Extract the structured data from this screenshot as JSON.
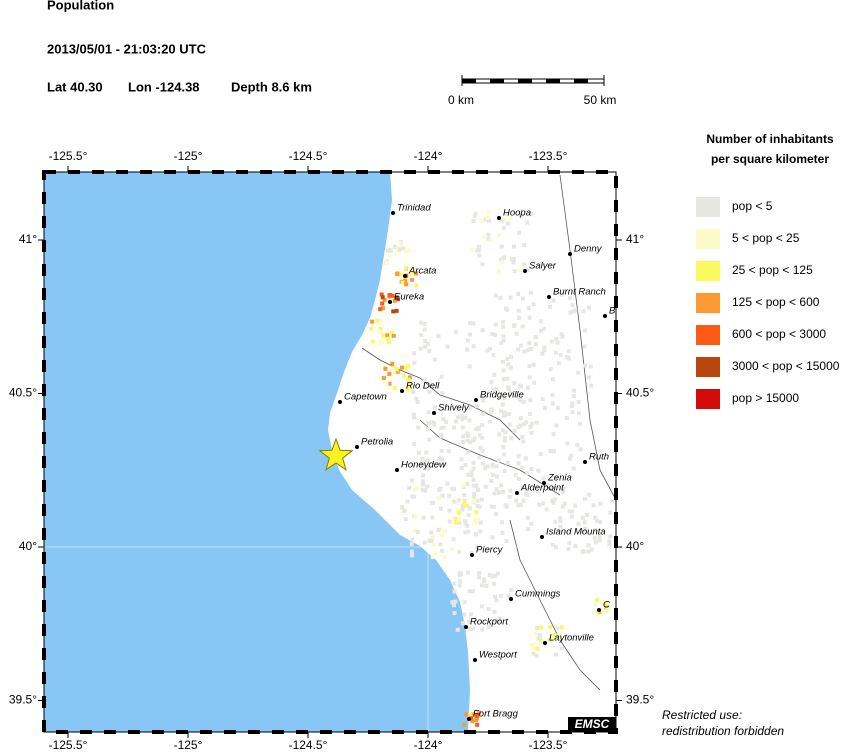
{
  "header": {
    "title": "Population",
    "datetime": "2013/05/01 - 21:03:20 UTC",
    "lat": "Lat 40.30",
    "lon": "Lon -124.38",
    "depth": "Depth  8.6 km"
  },
  "scale_bar": {
    "start": "0 km",
    "end": "50 km"
  },
  "map": {
    "lon_ticks": [
      {
        "value": -125.5,
        "label": "-125.5°"
      },
      {
        "value": -125,
        "label": "-125°"
      },
      {
        "value": -124.5,
        "label": "-124.5°"
      },
      {
        "value": -124,
        "label": "-124°"
      },
      {
        "value": -123.5,
        "label": "-123.5°"
      }
    ],
    "lat_ticks": [
      {
        "value": 41,
        "label": "41°"
      },
      {
        "value": 40.5,
        "label": "40.5°"
      },
      {
        "value": 40,
        "label": "40°"
      },
      {
        "value": 39.5,
        "label": "39.5°"
      }
    ],
    "cities": [
      "Trinidad",
      "Hoopa",
      "Denny",
      "Arcata",
      "Salyer",
      "Eureka",
      "Burnt Ranch",
      "B",
      "Rio Dell",
      "Capetown",
      "Bridgeville",
      "Shively",
      "Petrolia",
      "Ruth",
      "Honeydew",
      "Zenia",
      "Alderpoint",
      "Island Mounta",
      "Piercy",
      "Cummings",
      "C",
      "Rockport",
      "Laytonville",
      "Westport",
      "Fort Bragg"
    ],
    "badge": "EMSC"
  },
  "legend": {
    "title": [
      "Number of inhabitants",
      "per square kilometer"
    ],
    "items": [
      {
        "label": "pop < 5",
        "color": "#e6e6e2"
      },
      {
        "label": "5 < pop < 25",
        "color": "#fbfbc8"
      },
      {
        "label": "25 < pop < 125",
        "color": "#fbf860"
      },
      {
        "label": "125 < pop < 600",
        "color": "#fb9a33"
      },
      {
        "label": "600 < pop < 3000",
        "color": "#fb5b14"
      },
      {
        "label": "3000 < pop < 15000",
        "color": "#b8460e"
      },
      {
        "label": "pop > 15000",
        "color": "#d40b0b"
      }
    ]
  },
  "notice": [
    "Restricted use:",
    "redistribution forbidden"
  ]
}
